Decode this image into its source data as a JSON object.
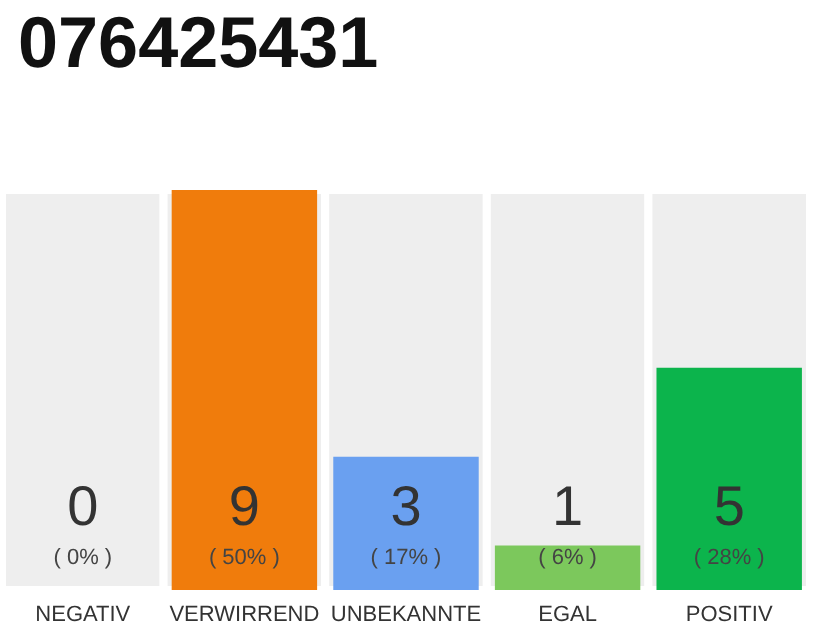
{
  "chart_data": {
    "type": "bar",
    "title": "076425431",
    "categories": [
      "NEGATIV",
      "VERWIRREND",
      "UNBEKANNTE",
      "EGAL",
      "POSITIV"
    ],
    "values": [
      0,
      9,
      3,
      1,
      5
    ],
    "colors": [
      "#bbbbbb",
      "#f07c0c",
      "#6aa0f0",
      "#7cc85c",
      "#0cb44c"
    ],
    "ylim": [
      0,
      9
    ],
    "tick_labels": "x",
    "value_labels": [
      "0\n( 0% )",
      "9\n( 50% )",
      "3\n( 17% )",
      "1\n( 6% )",
      "5\n( 28% )"
    ],
    "bands": [
      {
        "axis": "x",
        "from": "NEGATIV",
        "to": "NEGATIV",
        "color": "#eeeeee"
      },
      {
        "axis": "x",
        "from": "VERWIRREND",
        "to": "VERWIRREND",
        "color": "#eeeeee"
      },
      {
        "axis": "x",
        "from": "UNBEKANNTE",
        "to": "UNBEKANNTE",
        "color": "#eeeeee"
      },
      {
        "axis": "x",
        "from": "EGAL",
        "to": "EGAL",
        "color": "#eeeeee"
      },
      {
        "axis": "x",
        "from": "POSITIV",
        "to": "POSITIV",
        "color": "#eeeeee"
      }
    ]
  }
}
